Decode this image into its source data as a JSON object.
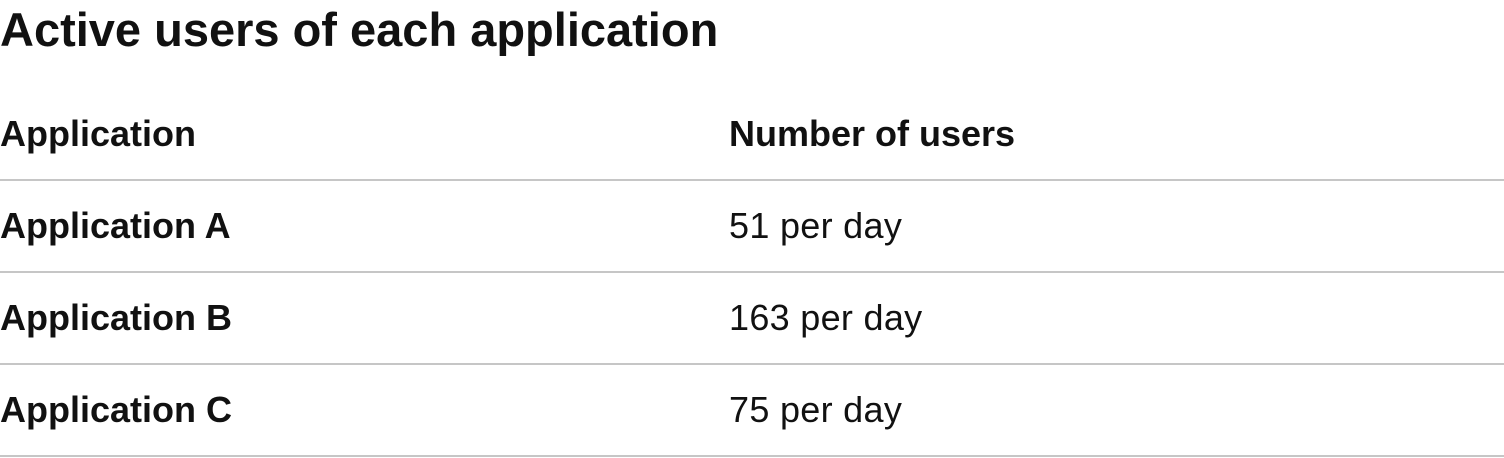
{
  "title": "Active users of each application",
  "table": {
    "headers": [
      "Application",
      "Number of users"
    ],
    "rows": [
      [
        "Application A",
        "51 per day"
      ],
      [
        "Application B",
        "163 per day"
      ],
      [
        "Application C",
        "75 per day"
      ]
    ]
  },
  "colors": {
    "text": "#111111",
    "divider": "#c6c6c6",
    "background": "#ffffff"
  }
}
